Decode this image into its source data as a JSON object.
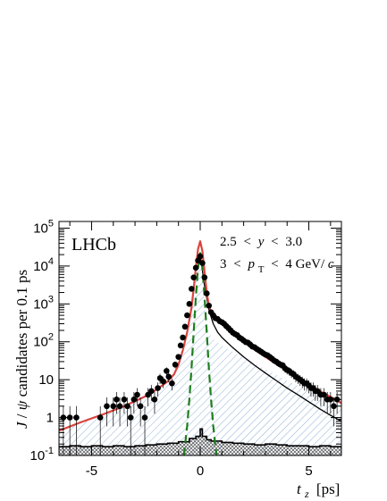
{
  "chart_data": {
    "type": "scatter",
    "experiment_label": "LHCb",
    "annotations": {
      "rapidity_cut": {
        "lo": "2.5",
        "op1": "<",
        "var": "y",
        "op2": "<",
        "hi": "3.0"
      },
      "pt_cut": {
        "lo": "3",
        "op1": "<",
        "var": "p",
        "sub": "T",
        "op2": "<",
        "hi": "4 GeV/",
        "unit_italic": "c"
      }
    },
    "xlabel": {
      "var": "t",
      "sub": "z",
      "unit": "[ps]"
    },
    "ylabel": {
      "var1": "J",
      "slash": " /",
      "var2": "ψ",
      "rest": " candidates per 0.1 ps"
    },
    "xlim": [
      -6.5,
      6.5
    ],
    "ylim": [
      0.1,
      150000
    ],
    "yscale": "log",
    "x_ticks": [
      -5,
      0,
      5
    ],
    "x_tick_labels": [
      "-5",
      "0",
      "5"
    ],
    "y_ticks": [
      0.1,
      1,
      10,
      100,
      1000,
      10000,
      100000
    ],
    "y_tick_labels": [
      {
        "base": "10",
        "exp": "-1"
      },
      {
        "base": "1",
        "exp": ""
      },
      {
        "base": "10",
        "exp": ""
      },
      {
        "base": "10",
        "exp": "2"
      },
      {
        "base": "10",
        "exp": "3"
      },
      {
        "base": "10",
        "exp": "4"
      },
      {
        "base": "10",
        "exp": "5"
      }
    ],
    "colors": {
      "data": "#000000",
      "total_fit": "#d9453f",
      "prompt": "#1e7d1e",
      "background_hatch": "#8fb0d6",
      "sideband_hist": "#000000",
      "b_component": "#000000"
    },
    "series": [
      {
        "kind": "data_points",
        "points": [
          {
            "x": -6.3,
            "y": 1
          },
          {
            "x": -6.0,
            "y": 1
          },
          {
            "x": -5.7,
            "y": 1
          },
          {
            "x": -4.6,
            "y": 1
          },
          {
            "x": -4.3,
            "y": 2
          },
          {
            "x": -4.0,
            "y": 2
          },
          {
            "x": -3.85,
            "y": 3
          },
          {
            "x": -3.7,
            "y": 2
          },
          {
            "x": -3.5,
            "y": 3
          },
          {
            "x": -3.35,
            "y": 2
          },
          {
            "x": -3.2,
            "y": 1
          },
          {
            "x": -3.05,
            "y": 3
          },
          {
            "x": -2.9,
            "y": 4
          },
          {
            "x": -2.75,
            "y": 2
          },
          {
            "x": -2.55,
            "y": 1
          },
          {
            "x": -2.4,
            "y": 4
          },
          {
            "x": -2.25,
            "y": 5
          },
          {
            "x": -2.1,
            "y": 3
          },
          {
            "x": -1.95,
            "y": 6
          },
          {
            "x": -1.85,
            "y": 11
          },
          {
            "x": -1.7,
            "y": 9
          },
          {
            "x": -1.55,
            "y": 17
          },
          {
            "x": -1.45,
            "y": 12
          },
          {
            "x": -1.3,
            "y": 8
          },
          {
            "x": -1.15,
            "y": 25
          },
          {
            "x": -1.0,
            "y": 40
          },
          {
            "x": -0.9,
            "y": 80
          },
          {
            "x": -0.8,
            "y": 130
          },
          {
            "x": -0.7,
            "y": 250
          },
          {
            "x": -0.6,
            "y": 500
          },
          {
            "x": -0.5,
            "y": 1000
          },
          {
            "x": -0.4,
            "y": 2500
          },
          {
            "x": -0.3,
            "y": 5000
          },
          {
            "x": -0.2,
            "y": 9000
          },
          {
            "x": -0.1,
            "y": 14000
          },
          {
            "x": 0.0,
            "y": 18000
          },
          {
            "x": 0.1,
            "y": 12000
          },
          {
            "x": 0.2,
            "y": 5000
          },
          {
            "x": 0.3,
            "y": 1900
          },
          {
            "x": 0.4,
            "y": 900
          },
          {
            "x": 0.5,
            "y": 600
          },
          {
            "x": 0.6,
            "y": 500
          },
          {
            "x": 0.7,
            "y": 420
          },
          {
            "x": 0.8,
            "y": 400
          },
          {
            "x": 0.9,
            "y": 350
          },
          {
            "x": 1.0,
            "y": 330
          },
          {
            "x": 1.1,
            "y": 300
          },
          {
            "x": 1.2,
            "y": 260
          },
          {
            "x": 1.3,
            "y": 230
          },
          {
            "x": 1.4,
            "y": 200
          },
          {
            "x": 1.5,
            "y": 175
          },
          {
            "x": 1.6,
            "y": 160
          },
          {
            "x": 1.7,
            "y": 150
          },
          {
            "x": 1.8,
            "y": 130
          },
          {
            "x": 1.9,
            "y": 120
          },
          {
            "x": 2.0,
            "y": 108
          },
          {
            "x": 2.1,
            "y": 98
          },
          {
            "x": 2.2,
            "y": 95
          },
          {
            "x": 2.3,
            "y": 85
          },
          {
            "x": 2.4,
            "y": 75
          },
          {
            "x": 2.5,
            "y": 72
          },
          {
            "x": 2.6,
            "y": 65
          },
          {
            "x": 2.7,
            "y": 60
          },
          {
            "x": 2.8,
            "y": 55
          },
          {
            "x": 2.9,
            "y": 50
          },
          {
            "x": 3.0,
            "y": 46
          },
          {
            "x": 3.1,
            "y": 44
          },
          {
            "x": 3.2,
            "y": 40
          },
          {
            "x": 3.3,
            "y": 36
          },
          {
            "x": 3.4,
            "y": 32
          },
          {
            "x": 3.5,
            "y": 30
          },
          {
            "x": 3.6,
            "y": 27
          },
          {
            "x": 3.7,
            "y": 25
          },
          {
            "x": 3.8,
            "y": 24
          },
          {
            "x": 3.9,
            "y": 20
          },
          {
            "x": 4.0,
            "y": 18
          },
          {
            "x": 4.1,
            "y": 17
          },
          {
            "x": 4.2,
            "y": 15
          },
          {
            "x": 4.3,
            "y": 14
          },
          {
            "x": 4.4,
            "y": 12
          },
          {
            "x": 4.5,
            "y": 11
          },
          {
            "x": 4.6,
            "y": 10
          },
          {
            "x": 4.7,
            "y": 9
          },
          {
            "x": 4.8,
            "y": 8
          },
          {
            "x": 4.9,
            "y": 8
          },
          {
            "x": 5.0,
            "y": 7
          },
          {
            "x": 5.1,
            "y": 6
          },
          {
            "x": 5.2,
            "y": 6
          },
          {
            "x": 5.3,
            "y": 5
          },
          {
            "x": 5.4,
            "y": 5
          },
          {
            "x": 5.55,
            "y": 4
          },
          {
            "x": 5.7,
            "y": 4
          },
          {
            "x": 5.85,
            "y": 3
          },
          {
            "x": 6.0,
            "y": 3
          },
          {
            "x": 6.15,
            "y": 2
          },
          {
            "x": 6.3,
            "y": 3
          }
        ]
      },
      {
        "kind": "total_fit",
        "x": [
          -6.5,
          -5.5,
          -4.5,
          -3.5,
          -3.0,
          -2.5,
          -2.0,
          -1.5,
          -1.2,
          -1.0,
          -0.8,
          -0.6,
          -0.4,
          -0.3,
          -0.2,
          -0.1,
          0.0,
          0.1,
          0.2,
          0.3,
          0.4,
          0.5,
          0.6,
          0.8,
          1.0,
          1.5,
          2.0,
          2.5,
          3.0,
          3.5,
          4.0,
          4.5,
          5.0,
          5.5,
          6.0,
          6.5
        ],
        "y": [
          0.45,
          0.75,
          1.2,
          2.0,
          2.7,
          3.7,
          5.5,
          9,
          14,
          25,
          60,
          180,
          800,
          2500,
          9000,
          28000,
          45000,
          25000,
          7000,
          2000,
          900,
          600,
          480,
          380,
          300,
          170,
          100,
          62,
          40,
          26,
          17,
          11,
          7.5,
          5,
          3.5,
          2.4
        ]
      },
      {
        "kind": "prompt_component",
        "x": [
          -0.75,
          -0.6,
          -0.5,
          -0.4,
          -0.3,
          -0.2,
          -0.1,
          0.0,
          0.1,
          0.2,
          0.3,
          0.4,
          0.5,
          0.6,
          0.75
        ],
        "y": [
          0.1,
          0.6,
          3,
          20,
          180,
          1500,
          9000,
          22000,
          9000,
          1500,
          180,
          20,
          3,
          0.6,
          0.1
        ]
      },
      {
        "kind": "b_component",
        "x": [
          0.0,
          0.2,
          0.4,
          0.6,
          0.8,
          1.0,
          1.5,
          2.0,
          2.5,
          3.0,
          3.5,
          4.0,
          4.5,
          5.0,
          5.5,
          6.0,
          6.5
        ],
        "y": [
          20000,
          3000,
          700,
          300,
          180,
          130,
          70,
          40,
          24,
          15,
          9.5,
          6,
          4,
          2.6,
          1.7,
          1.15,
          0.8
        ]
      },
      {
        "kind": "background_hatched",
        "x": [
          -6.5,
          -5.5,
          -4.5,
          -3.5,
          -3.0,
          -2.5,
          -2.0,
          -1.5,
          -1.2,
          -1.0,
          -0.8,
          -0.6,
          -0.4,
          -0.3,
          -0.2,
          -0.1,
          0.0,
          0.1,
          0.2,
          0.3,
          0.4,
          0.5,
          0.6,
          0.8,
          1.0,
          1.5,
          2.0,
          2.5,
          3.0,
          3.5,
          4.0,
          4.5,
          5.0,
          5.5,
          6.0,
          6.5
        ],
        "y": [
          0.45,
          0.75,
          1.2,
          2.0,
          2.7,
          3.7,
          5.5,
          9,
          14,
          25,
          60,
          180,
          800,
          2500,
          9000,
          20000,
          25000,
          12000,
          1000,
          300,
          180,
          140,
          120,
          95,
          80,
          55,
          38,
          27,
          19,
          13.5,
          9.5,
          6.8,
          4.9,
          3.5,
          2.6,
          2.0
        ]
      },
      {
        "kind": "sideband_histogram",
        "x": [
          -6.5,
          -6.0,
          -5.5,
          -5.0,
          -4.5,
          -4.0,
          -3.5,
          -3.0,
          -2.5,
          -2.0,
          -1.5,
          -1.0,
          -0.5,
          -0.2,
          0.0,
          0.1,
          0.3,
          0.5,
          1.0,
          1.5,
          2.0,
          2.5,
          3.0,
          3.5,
          4.0,
          4.5,
          5.0,
          5.5,
          6.0,
          6.5
        ],
        "y": [
          0.17,
          0.18,
          0.17,
          0.18,
          0.17,
          0.18,
          0.17,
          0.18,
          0.19,
          0.2,
          0.21,
          0.23,
          0.28,
          0.32,
          0.5,
          0.32,
          0.26,
          0.24,
          0.22,
          0.21,
          0.2,
          0.19,
          0.2,
          0.19,
          0.18,
          0.18,
          0.17,
          0.18,
          0.17,
          0.17
        ]
      }
    ]
  }
}
